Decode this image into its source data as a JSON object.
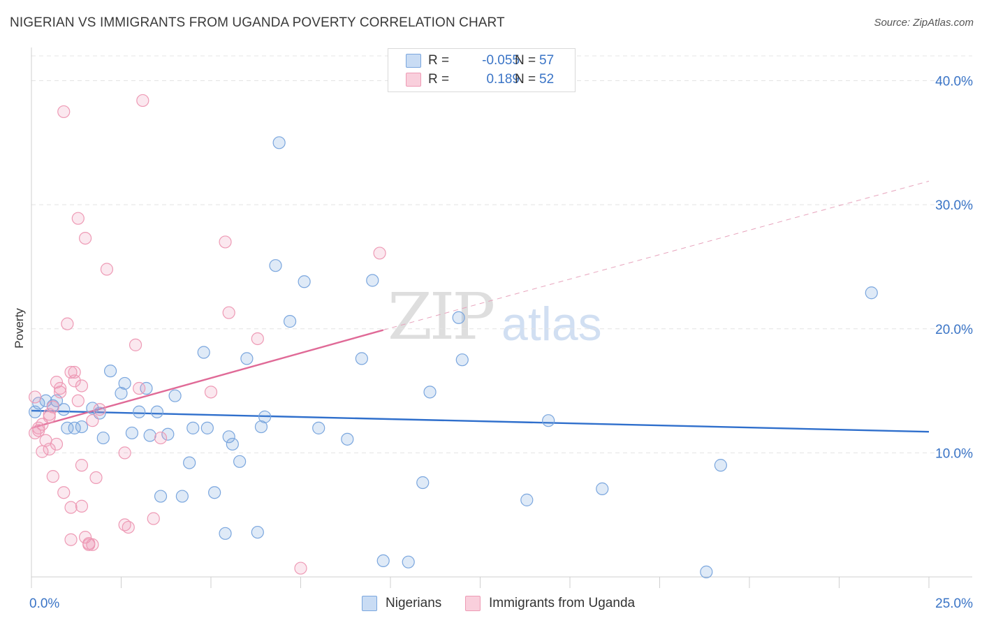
{
  "title": "NIGERIAN VS IMMIGRANTS FROM UGANDA POVERTY CORRELATION CHART",
  "source": "Source: ZipAtlas.com",
  "watermark": {
    "zip": "ZIP",
    "atlas": "atlas"
  },
  "legend_top": [
    {
      "r_label": "R =",
      "r_value": "-0.055",
      "n_label": "N =",
      "n_value": "57",
      "color": "#6fa0dc"
    },
    {
      "r_label": "R =",
      "r_value": "0.189",
      "n_label": "N =",
      "n_value": "52",
      "color": "#ef98b4"
    }
  ],
  "legend_bottom": [
    {
      "label": "Nigerians",
      "color": "#6fa0dc"
    },
    {
      "label": "Immigrants from Uganda",
      "color": "#ef98b4"
    }
  ],
  "chart_data": {
    "type": "scatter",
    "title": "NIGERIAN VS IMMIGRANTS FROM UGANDA POVERTY CORRELATION CHART",
    "xlabel": "",
    "ylabel": "Poverty",
    "xlim": [
      0,
      25
    ],
    "ylim": [
      0,
      42
    ],
    "x_tick_labels": [
      "0.0%",
      "25.0%"
    ],
    "y_ticks": [
      10,
      20,
      30,
      40
    ],
    "y_tick_labels": [
      "10.0%",
      "20.0%",
      "30.0%",
      "40.0%"
    ],
    "series": [
      {
        "name": "Nigerians",
        "color": "#6fa0dc",
        "points": [
          [
            0.2,
            14.0
          ],
          [
            0.4,
            14.2
          ],
          [
            0.7,
            14.2
          ],
          [
            0.9,
            13.5
          ],
          [
            1.2,
            12.0
          ],
          [
            1.4,
            12.1
          ],
          [
            1.7,
            13.6
          ],
          [
            1.9,
            13.2
          ],
          [
            2.0,
            11.2
          ],
          [
            2.2,
            16.6
          ],
          [
            2.5,
            14.8
          ],
          [
            2.6,
            15.6
          ],
          [
            2.8,
            11.6
          ],
          [
            3.0,
            13.3
          ],
          [
            3.2,
            15.2
          ],
          [
            3.3,
            11.4
          ],
          [
            3.5,
            13.3
          ],
          [
            3.6,
            6.5
          ],
          [
            3.8,
            11.5
          ],
          [
            4.0,
            14.6
          ],
          [
            4.2,
            6.5
          ],
          [
            4.4,
            9.2
          ],
          [
            4.5,
            12.0
          ],
          [
            4.8,
            18.1
          ],
          [
            4.9,
            12.0
          ],
          [
            5.1,
            6.8
          ],
          [
            5.4,
            3.5
          ],
          [
            5.5,
            11.3
          ],
          [
            5.6,
            10.7
          ],
          [
            5.8,
            9.3
          ],
          [
            6.0,
            17.6
          ],
          [
            6.3,
            3.6
          ],
          [
            6.4,
            12.1
          ],
          [
            6.5,
            12.9
          ],
          [
            6.8,
            25.1
          ],
          [
            6.9,
            35.0
          ],
          [
            7.2,
            20.6
          ],
          [
            7.6,
            23.8
          ],
          [
            8.0,
            12.0
          ],
          [
            8.8,
            11.1
          ],
          [
            9.2,
            17.6
          ],
          [
            9.5,
            23.9
          ],
          [
            9.8,
            1.3
          ],
          [
            10.5,
            1.2
          ],
          [
            10.9,
            7.6
          ],
          [
            11.1,
            14.9
          ],
          [
            11.9,
            20.9
          ],
          [
            12.0,
            17.5
          ],
          [
            13.8,
            6.2
          ],
          [
            14.4,
            12.6
          ],
          [
            15.9,
            7.1
          ],
          [
            18.8,
            0.4
          ],
          [
            19.2,
            9.0
          ],
          [
            23.4,
            22.9
          ],
          [
            0.1,
            13.3
          ],
          [
            0.6,
            13.8
          ],
          [
            1.0,
            12.0
          ]
        ]
      },
      {
        "name": "Immigrants from Uganda",
        "color": "#ef98b4",
        "points": [
          [
            0.1,
            14.5
          ],
          [
            0.1,
            11.6
          ],
          [
            0.2,
            12.0
          ],
          [
            0.3,
            12.3
          ],
          [
            0.3,
            10.1
          ],
          [
            0.4,
            11.0
          ],
          [
            0.5,
            12.9
          ],
          [
            0.5,
            13.1
          ],
          [
            0.5,
            10.3
          ],
          [
            0.6,
            8.1
          ],
          [
            0.6,
            13.7
          ],
          [
            0.7,
            15.7
          ],
          [
            0.7,
            10.7
          ],
          [
            0.8,
            14.9
          ],
          [
            0.8,
            15.2
          ],
          [
            0.9,
            6.8
          ],
          [
            1.0,
            20.4
          ],
          [
            1.1,
            5.6
          ],
          [
            1.1,
            16.5
          ],
          [
            1.1,
            3.0
          ],
          [
            1.2,
            16.5
          ],
          [
            1.2,
            15.8
          ],
          [
            1.3,
            14.2
          ],
          [
            1.4,
            15.4
          ],
          [
            1.4,
            9.0
          ],
          [
            1.4,
            5.7
          ],
          [
            1.5,
            3.2
          ],
          [
            1.6,
            2.7
          ],
          [
            1.6,
            2.6
          ],
          [
            1.7,
            2.6
          ],
          [
            1.7,
            12.6
          ],
          [
            1.8,
            8.0
          ],
          [
            1.9,
            13.5
          ],
          [
            0.9,
            37.5
          ],
          [
            1.3,
            28.9
          ],
          [
            1.5,
            27.3
          ],
          [
            2.1,
            24.8
          ],
          [
            2.6,
            4.2
          ],
          [
            2.6,
            10.0
          ],
          [
            2.7,
            4.0
          ],
          [
            2.9,
            18.7
          ],
          [
            3.0,
            15.2
          ],
          [
            3.1,
            38.4
          ],
          [
            3.4,
            4.7
          ],
          [
            3.6,
            11.2
          ],
          [
            5.0,
            14.9
          ],
          [
            5.4,
            27.0
          ],
          [
            5.5,
            21.3
          ],
          [
            6.3,
            19.2
          ],
          [
            7.5,
            0.7
          ],
          [
            9.7,
            26.1
          ],
          [
            0.2,
            11.8
          ]
        ]
      }
    ],
    "trend_lines": [
      {
        "series": "Nigerians",
        "x": [
          0,
          25
        ],
        "y": [
          13.4,
          11.7
        ],
        "style": "solid"
      },
      {
        "series": "Immigrants from Uganda",
        "x": [
          0,
          9.8
        ],
        "y": [
          12.0,
          19.9
        ],
        "style": "solid"
      },
      {
        "series": "Immigrants from Uganda",
        "x": [
          9.8,
          25
        ],
        "y": [
          19.9,
          31.9
        ],
        "style": "dashed"
      }
    ]
  }
}
